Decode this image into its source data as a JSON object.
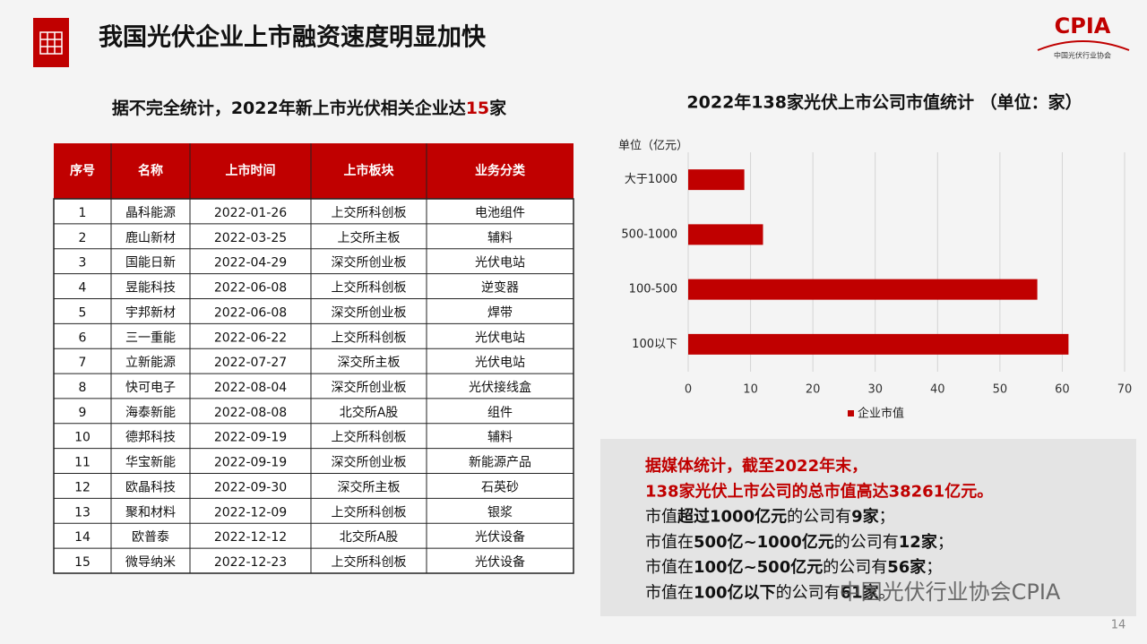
{
  "header": {
    "title": "我国光伏企业上市融资速度明显加快",
    "logo": "CPIA",
    "logo_sub": "中国光伏行业协会",
    "page_number": "14"
  },
  "subtitle": {
    "parts": [
      {
        "text": "据不完全统计，2022年新上市光伏相关企业达",
        "color": "#111111"
      },
      {
        "text": "15",
        "color": "#c00000"
      },
      {
        "text": "家",
        "color": "#111111"
      }
    ]
  },
  "table": {
    "headers": [
      "序号",
      "名称",
      "上市时间",
      "上市板块",
      "业务分类"
    ],
    "rows": [
      [
        "1",
        "晶科能源",
        "2022-01-26",
        "上交所科创板",
        "电池组件"
      ],
      [
        "2",
        "鹿山新材",
        "2022-03-25",
        "上交所主板",
        "辅料"
      ],
      [
        "3",
        "国能日新",
        "2022-04-29",
        "深交所创业板",
        "光伏电站"
      ],
      [
        "4",
        "昱能科技",
        "2022-06-08",
        "上交所科创板",
        "逆变器"
      ],
      [
        "5",
        "宇邦新材",
        "2022-06-08",
        "深交所创业板",
        "焊带"
      ],
      [
        "6",
        "三一重能",
        "2022-06-22",
        "上交所科创板",
        "光伏电站"
      ],
      [
        "7",
        "立新能源",
        "2022-07-27",
        "深交所主板",
        "光伏电站"
      ],
      [
        "8",
        "快可电子",
        "2022-08-04",
        "深交所创业板",
        "光伏接线盒"
      ],
      [
        "9",
        "海泰新能",
        "2022-08-08",
        "北交所A股",
        "组件"
      ],
      [
        "10",
        "德邦科技",
        "2022-09-19",
        "上交所科创板",
        "辅料"
      ],
      [
        "11",
        "华宝新能",
        "2022-09-19",
        "深交所创业板",
        "新能源产品"
      ],
      [
        "12",
        "欧晶科技",
        "2022-09-30",
        "深交所主板",
        "石英砂"
      ],
      [
        "13",
        "聚和材料",
        "2022-12-09",
        "上交所科创板",
        "银浆"
      ],
      [
        "14",
        "欧普泰",
        "2022-12-12",
        "北交所A股",
        "光伏设备"
      ],
      [
        "15",
        "微导纳米",
        "2022-12-23",
        "上交所科创板",
        "光伏设备"
      ]
    ]
  },
  "chart_data": {
    "type": "bar",
    "orientation": "horizontal",
    "title": "2022年138家光伏上市公司市值统计 （单位：家）",
    "y_label": "单位（亿元）",
    "categories": [
      "大于1000",
      "500-1000",
      "100-500",
      "100以下"
    ],
    "series": [
      {
        "name": "企业市值",
        "color": "#c00000",
        "values": [
          9,
          12,
          56,
          61
        ]
      }
    ],
    "xlim": [
      0,
      70
    ],
    "xticks": [
      0,
      10,
      20,
      30,
      40,
      50,
      60,
      70
    ],
    "grid": true,
    "legend": "bottom"
  },
  "summary": {
    "lines": [
      [
        {
          "text": "据媒体统计，截至2022年末，",
          "bold": true,
          "color": "#c00000"
        }
      ],
      [
        {
          "text": "138家光伏上市公司的总市值高达38261亿元。",
          "bold": true,
          "color": "#c00000"
        }
      ],
      [
        {
          "text": "市值",
          "bold": false,
          "color": "#111111"
        },
        {
          "text": "超过1000亿元",
          "bold": true,
          "color": "#111111"
        },
        {
          "text": "的公司有",
          "bold": false,
          "color": "#111111"
        },
        {
          "text": "9家",
          "bold": true,
          "color": "#111111"
        },
        {
          "text": "；",
          "bold": false,
          "color": "#111111"
        }
      ],
      [
        {
          "text": "市值在",
          "bold": false,
          "color": "#111111"
        },
        {
          "text": "500亿~1000亿元",
          "bold": true,
          "color": "#111111"
        },
        {
          "text": "的公司有",
          "bold": false,
          "color": "#111111"
        },
        {
          "text": "12家",
          "bold": true,
          "color": "#111111"
        },
        {
          "text": "；",
          "bold": false,
          "color": "#111111"
        }
      ],
      [
        {
          "text": "市值在",
          "bold": false,
          "color": "#111111"
        },
        {
          "text": "100亿~500亿元",
          "bold": true,
          "color": "#111111"
        },
        {
          "text": "的公司有",
          "bold": false,
          "color": "#111111"
        },
        {
          "text": "56家",
          "bold": true,
          "color": "#111111"
        },
        {
          "text": "；",
          "bold": false,
          "color": "#111111"
        }
      ],
      [
        {
          "text": "市值在",
          "bold": false,
          "color": "#111111"
        },
        {
          "text": "100亿以下",
          "bold": true,
          "color": "#111111"
        },
        {
          "text": "的公司有",
          "bold": false,
          "color": "#111111"
        },
        {
          "text": "61家",
          "bold": true,
          "color": "#111111"
        },
        {
          "text": "。",
          "bold": false,
          "color": "#111111"
        }
      ]
    ],
    "watermark": "中国光伏行业协会CPIA"
  }
}
